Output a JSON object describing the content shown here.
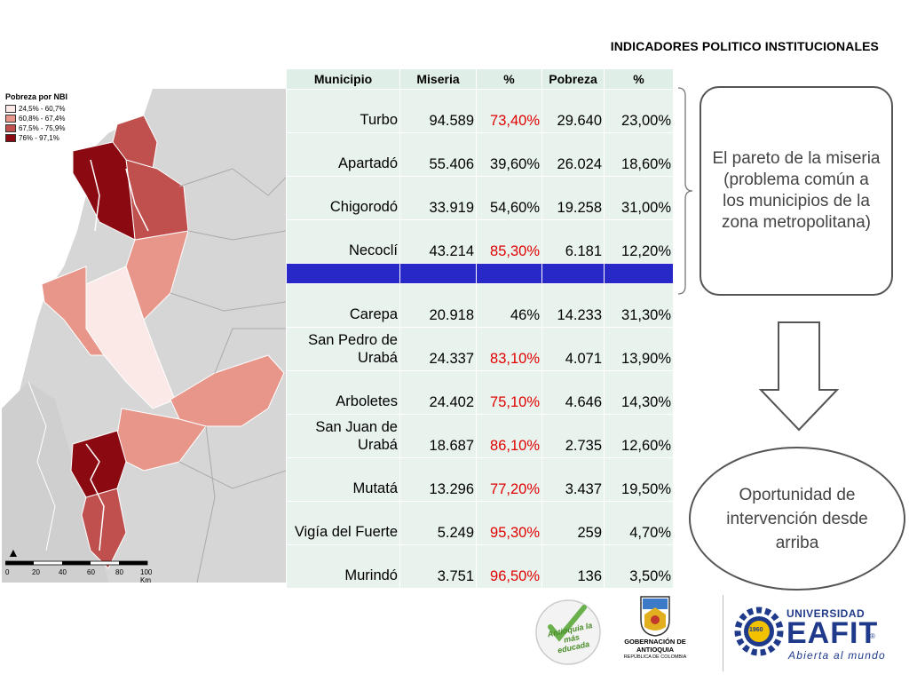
{
  "title": "INDICADORES POLITICO INSTITUCIONALES",
  "map": {
    "legend_title": "Pobreza por NBI",
    "legend": [
      {
        "range": "24,5% - 60,7%",
        "color": "#fbe9e7"
      },
      {
        "range": "60,8% - 67,4%",
        "color": "#e8968a"
      },
      {
        "range": "67,5% - 75,9%",
        "color": "#c0504d"
      },
      {
        "range": "76% - 97,1%",
        "color": "#8b0a12"
      }
    ],
    "scale_labels": [
      "0",
      "20",
      "40",
      "60",
      "80",
      "100 Km"
    ]
  },
  "table": {
    "headers": [
      "Municipio",
      "Miseria",
      "%",
      "Pobreza",
      "%"
    ],
    "rows_top": [
      {
        "municipio": "Turbo",
        "miseria": "94.589",
        "pct_miseria": "73,40%",
        "red": true,
        "pobreza": "29.640",
        "pct_pobreza": "23,00%"
      },
      {
        "municipio": "Apartadó",
        "miseria": "55.406",
        "pct_miseria": "39,60%",
        "red": false,
        "pobreza": "26.024",
        "pct_pobreza": "18,60%"
      },
      {
        "municipio": "Chigorodó",
        "miseria": "33.919",
        "pct_miseria": "54,60%",
        "red": false,
        "pobreza": "19.258",
        "pct_pobreza": "31,00%"
      },
      {
        "municipio": "Necoclí",
        "miseria": "43.214",
        "pct_miseria": "85,30%",
        "red": true,
        "pobreza": "6.181",
        "pct_pobreza": "12,20%"
      }
    ],
    "rows_bottom": [
      {
        "municipio": "Carepa",
        "miseria": "20.918",
        "pct_miseria": "46%",
        "red": false,
        "pobreza": "14.233",
        "pct_pobreza": "31,30%"
      },
      {
        "municipio": "San Pedro de Urabá",
        "miseria": "24.337",
        "pct_miseria": "83,10%",
        "red": true,
        "pobreza": "4.071",
        "pct_pobreza": "13,90%"
      },
      {
        "municipio": "Arboletes",
        "miseria": "24.402",
        "pct_miseria": "75,10%",
        "red": true,
        "pobreza": "4.646",
        "pct_pobreza": "14,30%"
      },
      {
        "municipio": "San Juan de Urabá",
        "miseria": "18.687",
        "pct_miseria": "86,10%",
        "red": true,
        "pobreza": "2.735",
        "pct_pobreza": "12,60%"
      },
      {
        "municipio": "Mutatá",
        "miseria": "13.296",
        "pct_miseria": "77,20%",
        "red": true,
        "pobreza": "3.437",
        "pct_pobreza": "19,50%"
      },
      {
        "municipio": "Vigía del Fuerte",
        "miseria": "5.249",
        "pct_miseria": "95,30%",
        "red": true,
        "pobreza": "259",
        "pct_pobreza": "4,70%"
      },
      {
        "municipio": "Murindó",
        "miseria": "3.751",
        "pct_miseria": "96,50%",
        "red": true,
        "pobreza": "136",
        "pct_pobreza": "3,50%"
      }
    ]
  },
  "callout_box": "El pareto de la miseria (problema común a los municipios de la zona metropolitana)",
  "callout_ellipse": "Oportunidad de intervención desde arriba",
  "logos": {
    "antioquia_badge": "Antioquia la más educada",
    "gobernacion": "GOBERNACIÓN DE ANTIOQUIA",
    "gobernacion_sub": "REPÚBLICA DE COLOMBIA",
    "eafit_universidad": "UNIVERSIDAD",
    "eafit_name": "EAFIT",
    "eafit_tagline": "Abierta al mundo",
    "eafit_year": "1960"
  },
  "colors": {
    "red_text": "#e00000",
    "table_bg": "#e9f3ee",
    "separator_blue": "#2828c8",
    "eafit_blue": "#1f3a8a"
  }
}
